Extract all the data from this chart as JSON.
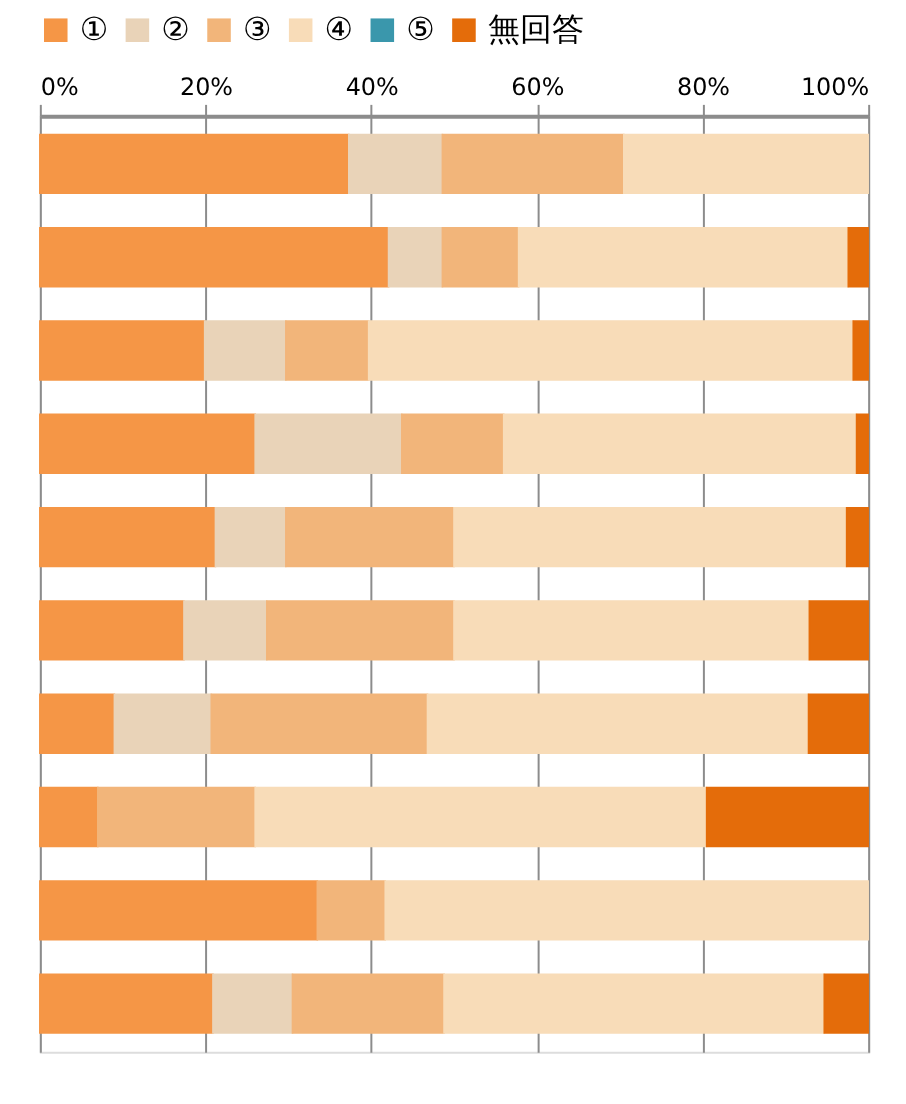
{
  "chart_data": {
    "type": "bar",
    "orientation": "horizontal",
    "stacked": true,
    "categories": [
      null,
      null,
      null,
      null,
      null,
      null,
      null,
      null,
      null,
      null
    ],
    "xlim": [
      0,
      100
    ],
    "xticks": [
      {
        "value": 0,
        "label": "0%"
      },
      {
        "value": 20,
        "label": "20%"
      },
      {
        "value": 40,
        "label": "40%"
      },
      {
        "value": 60,
        "label": "60%"
      },
      {
        "value": 80,
        "label": "80%"
      },
      {
        "value": 100,
        "label": "100%"
      }
    ],
    "grid": "x",
    "legend": "top",
    "tick_labels": "x",
    "series": [
      {
        "name": "①",
        "color": "#f59646",
        "values": [
          37.3,
          42.1,
          19.9,
          26.0,
          21.2,
          17.4,
          9.0,
          7.0,
          33.5,
          20.9
        ]
      },
      {
        "name": "②",
        "color": "#e9d3b8",
        "values": [
          11.3,
          6.5,
          9.8,
          17.7,
          8.5,
          10.0,
          11.7,
          null,
          null,
          9.6
        ]
      },
      {
        "name": "③",
        "color": "#f2b57a",
        "values": [
          21.9,
          9.2,
          10.0,
          12.3,
          20.3,
          22.6,
          26.1,
          19.0,
          8.2,
          18.3
        ]
      },
      {
        "name": "④",
        "color": "#f8dcb8",
        "values": [
          29.5,
          39.8,
          58.5,
          42.6,
          47.4,
          42.9,
          46.0,
          54.5,
          58.3,
          45.9
        ]
      },
      {
        "name": "⑤",
        "color": "#3a97ac",
        "values": [
          null,
          null,
          null,
          null,
          null,
          null,
          null,
          null,
          null,
          null
        ]
      },
      {
        "name": "無回答",
        "color": "#e46c0a",
        "values": [
          null,
          2.4,
          1.8,
          1.4,
          2.6,
          7.1,
          7.2,
          19.5,
          null,
          5.3
        ]
      }
    ]
  }
}
